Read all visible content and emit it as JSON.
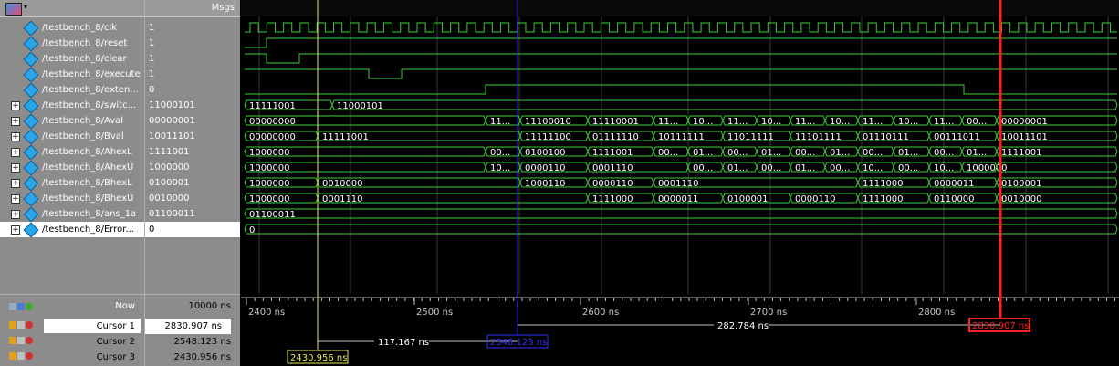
{
  "header": {
    "msgs_label": "Msgs"
  },
  "signals": [
    {
      "name": "/testbench_8/clk",
      "value": "1",
      "expandable": false
    },
    {
      "name": "/testbench_8/reset",
      "value": "1",
      "expandable": false
    },
    {
      "name": "/testbench_8/clear",
      "value": "1",
      "expandable": false
    },
    {
      "name": "/testbench_8/execute",
      "value": "1",
      "expandable": false
    },
    {
      "name": "/testbench_8/exten...",
      "value": "0",
      "expandable": false
    },
    {
      "name": "/testbench_8/switc...",
      "value": "11000101",
      "expandable": true
    },
    {
      "name": "/testbench_8/Aval",
      "value": "00000001",
      "expandable": true
    },
    {
      "name": "/testbench_8/Bval",
      "value": "10011101",
      "expandable": true
    },
    {
      "name": "/testbench_8/AhexL",
      "value": "1111001",
      "expandable": true
    },
    {
      "name": "/testbench_8/AhexU",
      "value": "1000000",
      "expandable": true
    },
    {
      "name": "/testbench_8/BhexL",
      "value": "0100001",
      "expandable": true
    },
    {
      "name": "/testbench_8/BhexU",
      "value": "0010000",
      "expandable": true
    },
    {
      "name": "/testbench_8/ans_1a",
      "value": "01100011",
      "expandable": true
    },
    {
      "name": "/testbench_8/Error...",
      "value": "0",
      "expandable": true
    }
  ],
  "bottom": {
    "now_label": "Now",
    "now_value": "10000 ns",
    "cursors": [
      {
        "name": "Cursor 1",
        "value": "2830.907 ns"
      },
      {
        "name": "Cursor 2",
        "value": "2548.123 ns"
      },
      {
        "name": "Cursor 3",
        "value": "2430.956 ns"
      }
    ]
  },
  "timeline": {
    "ticks": [
      "2400 ns",
      "2500 ns",
      "2600 ns",
      "2700 ns",
      "2800 ns"
    ],
    "cursor_labels": [
      "2830.907 ns",
      "2548.123 ns",
      "2430.956 ns"
    ],
    "deltas": [
      "282.784 ns",
      "117.167 ns"
    ]
  },
  "bus_values": {
    "switc": [
      "11111001",
      "11000101"
    ],
    "aval": [
      "00000000",
      "11...",
      "11100010",
      "11110001",
      "11...",
      "10...",
      "11...",
      "10...",
      "11...",
      "10...",
      "11...",
      "10...",
      "11...",
      "00...",
      "00000001"
    ],
    "bval": [
      "00000000",
      "11111001",
      "11111100",
      "01111110",
      "10111111",
      "11011111",
      "11101111",
      "01110111",
      "00111011",
      "10011101"
    ],
    "ahexl": [
      "1000000",
      "00...",
      "0100100",
      "1111001",
      "00...",
      "01...",
      "00...",
      "01...",
      "00...",
      "01...",
      "00...",
      "01...",
      "00...",
      "01...",
      "1111001"
    ],
    "ahexu": [
      "1000000",
      "10...",
      "0000110",
      "0001110",
      "00...",
      "01...",
      "00...",
      "01...",
      "00...",
      "10...",
      "00...",
      "10...",
      "1000000"
    ],
    "bhexl": [
      "1000000",
      "0010000",
      "1000110",
      "0000110",
      "0001110",
      "1111000",
      "0000011",
      "0100001"
    ],
    "bhexu": [
      "1000000",
      "0001110",
      "1111000",
      "0000011",
      "0100001",
      "0000110",
      "1111000",
      "0110000",
      "0010000"
    ],
    "ans": [
      "01100011"
    ],
    "error": [
      "0"
    ]
  },
  "colors": {
    "wave": "#3ccf3c",
    "cursor1": "#ff2020",
    "cursor2": "#3030ff",
    "cursor3": "#e8e860",
    "grid": "#3a3a3a"
  }
}
